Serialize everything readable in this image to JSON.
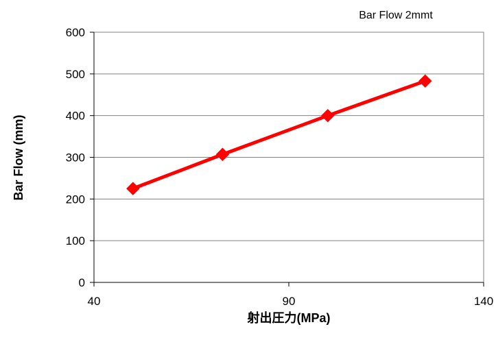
{
  "chart_data": {
    "type": "line",
    "title": "Bar Flow 2mmt",
    "xlabel": "射出圧力(MPa)",
    "ylabel": "Bar Flow (mm)",
    "xlim": [
      40,
      140
    ],
    "ylim": [
      0,
      600
    ],
    "x_ticks": [
      40,
      90,
      140
    ],
    "y_ticks": [
      0,
      100,
      200,
      300,
      400,
      500,
      600
    ],
    "grid": {
      "horizontal": true,
      "vertical": false
    },
    "legend": "none",
    "series": [
      {
        "color": "#ff0000",
        "marker": "diamond",
        "points": [
          {
            "x": 50,
            "y": 225
          },
          {
            "x": 73,
            "y": 307
          },
          {
            "x": 100,
            "y": 400
          },
          {
            "x": 125,
            "y": 483
          }
        ]
      }
    ]
  }
}
